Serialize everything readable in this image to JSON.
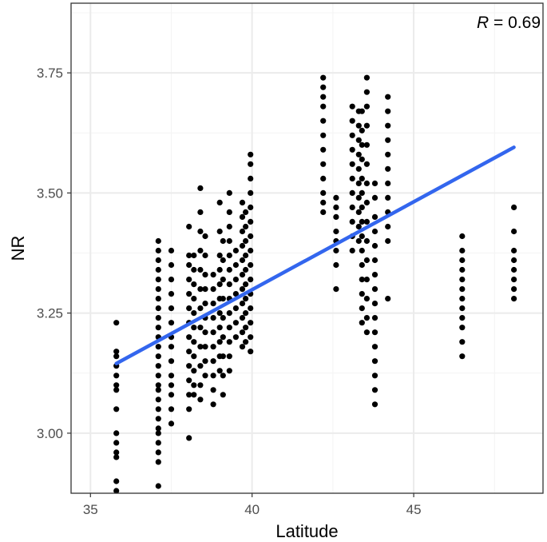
{
  "chart_data": {
    "type": "scatter",
    "title": "",
    "xlabel": "Latitude",
    "ylabel": "NR",
    "xlim": [
      34.4,
      49.0
    ],
    "ylim": [
      2.875,
      3.895
    ],
    "x_ticks": [
      35,
      40,
      45
    ],
    "x_tick_labels": [
      "35",
      "40",
      "45"
    ],
    "y_ticks": [
      3.0,
      3.25,
      3.5,
      3.75
    ],
    "y_tick_labels": [
      "3.00",
      "3.25",
      "3.50",
      "3.75"
    ],
    "grid": true,
    "annotation": {
      "italic": "R",
      "rest": " = 0.69"
    },
    "colors": {
      "points": "#000000",
      "fit_line": "#3366ee",
      "grid_major": "#ebebeb",
      "grid_minor": "#f4f4f4",
      "border": "#333333"
    },
    "fit_line": {
      "x": [
        35.8,
        48.1
      ],
      "y": [
        3.145,
        3.595
      ]
    },
    "point_groups": [
      {
        "x": 35.8,
        "points": [
          2.88,
          2.9,
          2.95,
          2.96,
          2.98,
          3.0,
          3.05,
          3.09,
          3.1,
          3.12,
          3.14,
          3.16,
          3.17,
          3.23
        ]
      },
      {
        "x": 37.1,
        "points": [
          2.89,
          2.94,
          2.96,
          2.98,
          3.0,
          3.01,
          3.03,
          3.05,
          3.07,
          3.09,
          3.1,
          3.12,
          3.14,
          3.16,
          3.18,
          3.2,
          3.22,
          3.24,
          3.26,
          3.28,
          3.3,
          3.32,
          3.34,
          3.36,
          3.38,
          3.4
        ]
      },
      {
        "x": 37.5,
        "points": [
          3.02,
          3.05,
          3.08,
          3.1,
          3.12,
          3.15,
          3.18,
          3.2,
          3.23,
          3.26,
          3.29,
          3.32,
          3.35,
          3.38
        ]
      },
      {
        "x": 38.05,
        "points": [
          2.99,
          3.05,
          3.08,
          3.11,
          3.14,
          3.17,
          3.2,
          3.23,
          3.26,
          3.29,
          3.32,
          3.35,
          3.37,
          3.43
        ]
      },
      {
        "x": 38.2,
        "points": [
          3.08,
          3.1,
          3.13,
          3.16,
          3.19,
          3.22,
          3.25,
          3.28,
          3.31,
          3.34,
          3.37
        ]
      },
      {
        "x": 38.4,
        "points": [
          3.07,
          3.1,
          3.14,
          3.18,
          3.22,
          3.26,
          3.3,
          3.34,
          3.38,
          3.42,
          3.46,
          3.51
        ]
      },
      {
        "x": 38.55,
        "points": [
          3.12,
          3.15,
          3.18,
          3.21,
          3.24,
          3.27,
          3.3,
          3.33,
          3.37,
          3.41
        ]
      },
      {
        "x": 38.8,
        "points": [
          3.06,
          3.09,
          3.12,
          3.15,
          3.18,
          3.21,
          3.24,
          3.27,
          3.3,
          3.33
        ]
      },
      {
        "x": 39.0,
        "points": [
          3.13,
          3.16,
          3.19,
          3.22,
          3.25,
          3.28,
          3.31,
          3.34,
          3.37,
          3.42,
          3.48
        ]
      },
      {
        "x": 39.1,
        "points": [
          3.08,
          3.12,
          3.16,
          3.2,
          3.24,
          3.28,
          3.32,
          3.36,
          3.4
        ]
      },
      {
        "x": 39.3,
        "points": [
          3.13,
          3.16,
          3.19,
          3.22,
          3.25,
          3.28,
          3.31,
          3.34,
          3.37,
          3.4,
          3.43,
          3.46,
          3.5
        ]
      },
      {
        "x": 39.5,
        "points": [
          3.2,
          3.23,
          3.26,
          3.29,
          3.32,
          3.35,
          3.38
        ]
      },
      {
        "x": 39.7,
        "points": [
          3.18,
          3.21,
          3.24,
          3.27,
          3.3,
          3.33,
          3.36,
          3.39,
          3.42,
          3.45,
          3.48
        ]
      },
      {
        "x": 39.8,
        "points": [
          3.19,
          3.22,
          3.25,
          3.28,
          3.31,
          3.34,
          3.37,
          3.4,
          3.43,
          3.46
        ]
      },
      {
        "x": 39.95,
        "points": [
          3.17,
          3.2,
          3.23,
          3.26,
          3.29,
          3.32,
          3.35,
          3.38,
          3.41,
          3.44,
          3.47,
          3.5,
          3.53,
          3.56,
          3.58
        ]
      },
      {
        "x": 42.2,
        "points": [
          3.46,
          3.48,
          3.5,
          3.53,
          3.56,
          3.59,
          3.62,
          3.65,
          3.68,
          3.7,
          3.72,
          3.74
        ]
      },
      {
        "x": 42.6,
        "points": [
          3.3,
          3.35,
          3.38,
          3.4,
          3.42,
          3.45,
          3.47,
          3.49
        ]
      },
      {
        "x": 43.1,
        "points": [
          3.38,
          3.41,
          3.44,
          3.47,
          3.5,
          3.53,
          3.56,
          3.59,
          3.62,
          3.65,
          3.68
        ]
      },
      {
        "x": 43.3,
        "points": [
          3.4,
          3.43,
          3.46,
          3.49,
          3.52,
          3.55,
          3.58,
          3.61,
          3.64,
          3.67
        ]
      },
      {
        "x": 43.4,
        "points": [
          3.23,
          3.26,
          3.29,
          3.32,
          3.35,
          3.38,
          3.41,
          3.44,
          3.47,
          3.5,
          3.53,
          3.57,
          3.6,
          3.63,
          3.67
        ]
      },
      {
        "x": 43.55,
        "points": [
          3.21,
          3.24,
          3.28,
          3.32,
          3.36,
          3.4,
          3.44,
          3.48,
          3.52,
          3.56,
          3.6,
          3.64,
          3.68,
          3.71,
          3.74
        ]
      },
      {
        "x": 43.8,
        "points": [
          3.06,
          3.09,
          3.12,
          3.15,
          3.18,
          3.21,
          3.24,
          3.27,
          3.3,
          3.33,
          3.36,
          3.39,
          3.42,
          3.45,
          3.49,
          3.52
        ]
      },
      {
        "x": 44.2,
        "points": [
          3.28,
          3.4,
          3.43,
          3.46,
          3.49,
          3.52,
          3.55,
          3.58,
          3.61,
          3.64,
          3.67,
          3.7
        ]
      },
      {
        "x": 46.5,
        "points": [
          3.16,
          3.19,
          3.22,
          3.24,
          3.26,
          3.28,
          3.3,
          3.32,
          3.34,
          3.36,
          3.38,
          3.41
        ]
      },
      {
        "x": 48.1,
        "points": [
          3.28,
          3.3,
          3.32,
          3.34,
          3.36,
          3.38,
          3.42,
          3.47
        ]
      }
    ]
  }
}
